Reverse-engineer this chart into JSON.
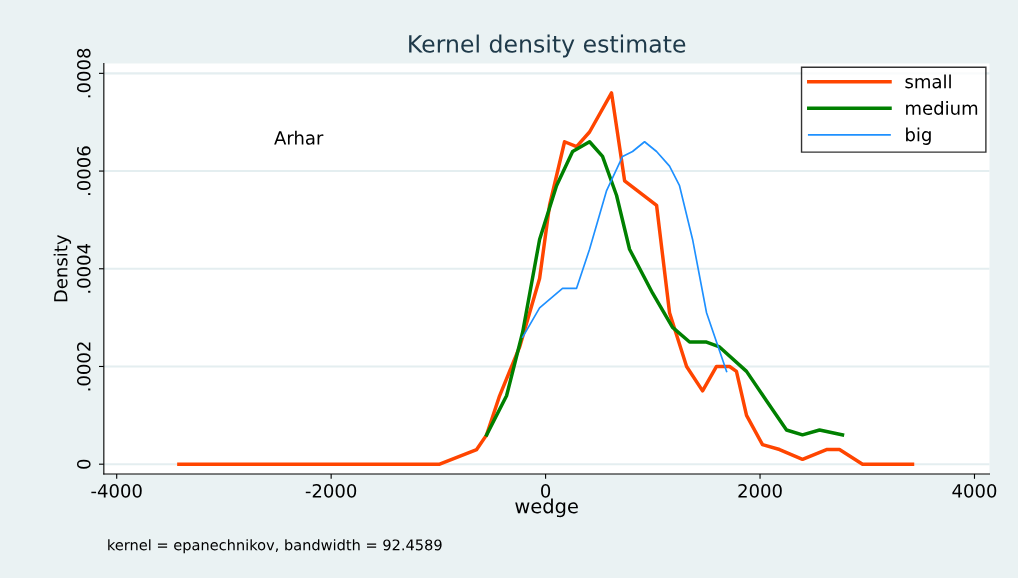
{
  "chart_data": {
    "type": "line",
    "title": "Kernel density estimate",
    "xlabel": "wedge",
    "ylabel": "Density",
    "annotations": [
      "Arhar",
      "kernel = epanechnikov, bandwidth = 92.4589"
    ],
    "xlim": [
      -4120,
      4140
    ],
    "ylim": [
      -2e-05,
      0.00082
    ],
    "xticks": [
      -4000,
      -2000,
      0,
      2000,
      4000
    ],
    "yticks": [
      {
        "value": 0,
        "label": "0"
      },
      {
        "value": 0.0002,
        "label": ".0002"
      },
      {
        "value": 0.0004,
        "label": ".0004"
      },
      {
        "value": 0.0006,
        "label": ".0006"
      },
      {
        "value": 0.0008,
        "label": ".0008"
      }
    ],
    "grid": "y",
    "legend": "top right",
    "marker": "none",
    "line_style": "solid",
    "series": [
      {
        "name": "small",
        "color": "#ff4500",
        "x": [
          -3420,
          -1333,
          -988,
          -643,
          -550,
          -429,
          -242,
          -56,
          37,
          177,
          289,
          410,
          615,
          737,
          1035,
          1156,
          1315,
          1464,
          1594,
          1716,
          1780,
          1874,
          2023,
          2182,
          2396,
          2620,
          2741,
          2956,
          3422
        ],
        "values": [
          0,
          0,
          0,
          3e-05,
          6e-05,
          0.00014,
          0.00024,
          0.00038,
          0.00053,
          0.00066,
          0.00065,
          0.00068,
          0.00076,
          0.00058,
          0.00053,
          0.00031,
          0.0002,
          0.00015,
          0.0002,
          0.0002,
          0.00019,
          0.0001,
          4e-05,
          3e-05,
          1e-05,
          3e-05,
          3e-05,
          0,
          0
        ]
      },
      {
        "name": "medium",
        "color": "#008000",
        "x": [
          -550,
          -364,
          -214,
          -56,
          102,
          252,
          410,
          531,
          662,
          783,
          998,
          1184,
          1343,
          1501,
          1622,
          1874,
          2060,
          2247,
          2396,
          2555,
          2769
        ],
        "values": [
          6e-05,
          0.00014,
          0.00027,
          0.00046,
          0.00057,
          0.00064,
          0.00066,
          0.00063,
          0.00055,
          0.00044,
          0.00035,
          0.00028,
          0.00025,
          0.00025,
          0.00024,
          0.00019,
          0.00013,
          7e-05,
          6e-05,
          7e-05,
          6e-05
        ]
      },
      {
        "name": "big",
        "color": "#1e90ff",
        "x": [
          -214,
          -56,
          158,
          289,
          410,
          569,
          718,
          811,
          923,
          1035,
          1156,
          1249,
          1371,
          1501,
          1688
        ],
        "values": [
          0.00026,
          0.00032,
          0.00036,
          0.00036,
          0.00044,
          0.00056,
          0.00063,
          0.00064,
          0.00066,
          0.00064,
          0.00061,
          0.00057,
          0.00046,
          0.00031,
          0.00019
        ]
      }
    ]
  }
}
